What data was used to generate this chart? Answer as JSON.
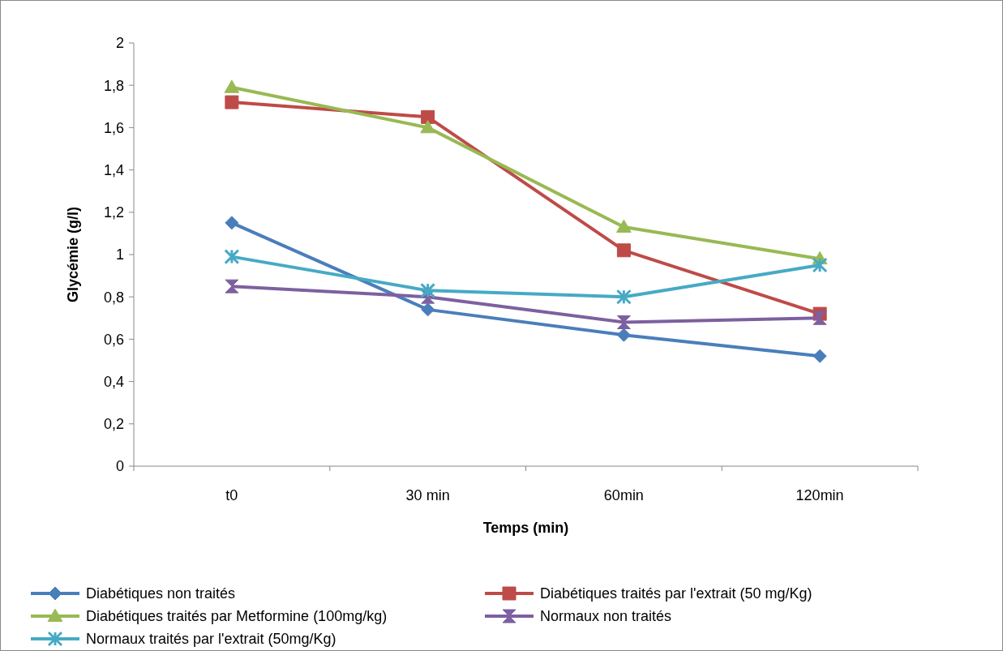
{
  "chart_data": {
    "type": "line",
    "xlabel": "Temps (min)",
    "ylabel": "Glycémie (g/l)",
    "categories": [
      "t0",
      "30 min",
      "60min",
      "120min"
    ],
    "ylim": [
      0,
      2
    ],
    "yticks": [
      {
        "value": 0,
        "label": "0"
      },
      {
        "value": 0.2,
        "label": "0,2"
      },
      {
        "value": 0.4,
        "label": "0,4"
      },
      {
        "value": 0.6,
        "label": "0,6"
      },
      {
        "value": 0.8,
        "label": "0,8"
      },
      {
        "value": 1,
        "label": "1"
      },
      {
        "value": 1.2,
        "label": "1,2"
      },
      {
        "value": 1.4,
        "label": "1,4"
      },
      {
        "value": 1.6,
        "label": "1,6"
      },
      {
        "value": 1.8,
        "label": "1,8"
      },
      {
        "value": 2,
        "label": "2"
      }
    ],
    "grid": false,
    "legend": "bottom",
    "line_style": "solid",
    "series": [
      {
        "name": "Diabétiques non traités",
        "color": "#4a7ebb",
        "marker": "diamond",
        "values": [
          1.15,
          0.74,
          0.62,
          0.52
        ]
      },
      {
        "name": "Diabétiques traités par l'extrait (50 mg/Kg)",
        "color": "#be4b48",
        "marker": "square",
        "values": [
          1.72,
          1.65,
          1.02,
          0.72
        ]
      },
      {
        "name": "Diabétiques traités par Metformine (100mg/kg)",
        "color": "#98b954",
        "marker": "triangle",
        "values": [
          1.79,
          1.6,
          1.13,
          0.98
        ]
      },
      {
        "name": "Normaux non traités",
        "color": "#7d60a0",
        "marker": "star",
        "values": [
          0.85,
          0.8,
          0.68,
          0.7
        ]
      },
      {
        "name": "Normaux traités par l'extrait (50mg/Kg)",
        "color": "#46aac5",
        "marker": "cross",
        "values": [
          0.99,
          0.83,
          0.8,
          0.95
        ]
      }
    ]
  }
}
